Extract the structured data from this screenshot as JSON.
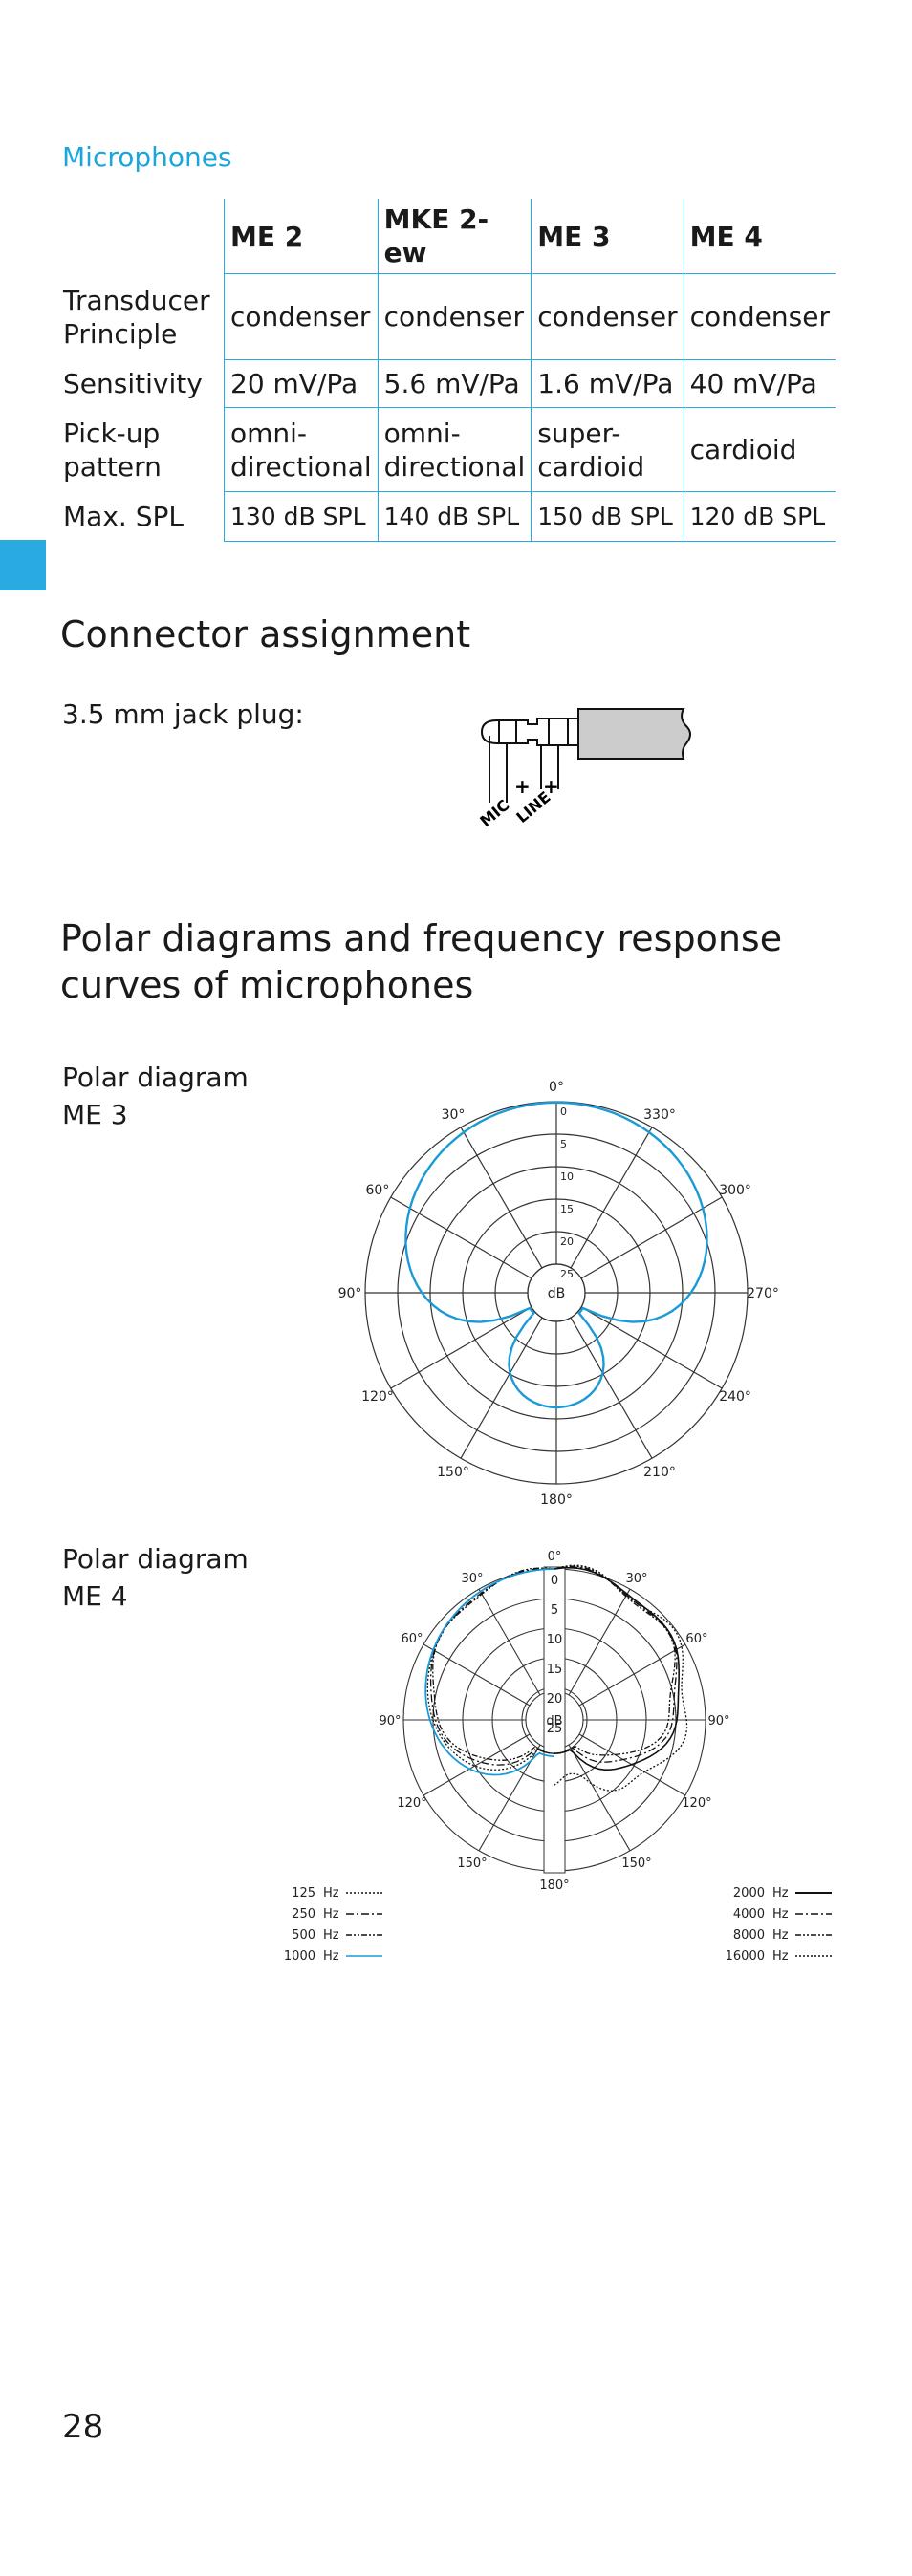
{
  "section_title": "Microphones",
  "table": {
    "columns": [
      "",
      "ME 2",
      "MKE 2-ew",
      "ME 3",
      "ME 4"
    ],
    "rows": [
      [
        "Transducer Principle",
        "condenser",
        "condenser",
        "condenser",
        "condenser"
      ],
      [
        "Sensitivity",
        "20 mV/Pa",
        "5.6 mV/Pa",
        "1.6 mV/Pa",
        "40 mV/Pa"
      ],
      [
        "Pick-up pattern",
        "omni-directional",
        "omni-directional",
        "super-cardioid",
        "cardioid"
      ],
      [
        "Max. SPL",
        "130 dB SPL",
        "140 dB SPL",
        "150 dB SPL",
        "120 dB SPL"
      ]
    ]
  },
  "connector": {
    "heading": "Connector assignment",
    "jack_label": "3.5 mm jack plug:",
    "mic_label": "MIC",
    "line_label": "LINE",
    "plus1": "+",
    "plus2": "+"
  },
  "polar": {
    "heading_line1": "Polar diagrams and frequency response",
    "heading_line2": "curves of microphones",
    "me3_label": "Polar diagram\nME 3",
    "me4_label": "Polar diagram\nME 4",
    "angles_me3": [
      "0°",
      "30°",
      "330°",
      "60°",
      "300°",
      "90°",
      "270°",
      "120°",
      "240°",
      "150°",
      "210°",
      "180°"
    ],
    "angles_me4": [
      "0°",
      "30°",
      "30°",
      "60°",
      "60°",
      "90°",
      "90°",
      "120°",
      "120°",
      "150°",
      "150°",
      "180°"
    ],
    "db_ticks": [
      "0",
      "5",
      "10",
      "15",
      "20",
      "25"
    ],
    "db_center": "dB",
    "legend_left": [
      {
        "freq": "125",
        "unit": "Hz"
      },
      {
        "freq": "250",
        "unit": "Hz"
      },
      {
        "freq": "500",
        "unit": "Hz"
      },
      {
        "freq": "1000",
        "unit": "Hz"
      }
    ],
    "legend_right": [
      {
        "freq": "2000",
        "unit": "Hz"
      },
      {
        "freq": "4000",
        "unit": "Hz"
      },
      {
        "freq": "8000",
        "unit": "Hz"
      },
      {
        "freq": "16000",
        "unit": "Hz"
      }
    ],
    "accent_color": "#1a9bd7"
  },
  "page_number": "28"
}
